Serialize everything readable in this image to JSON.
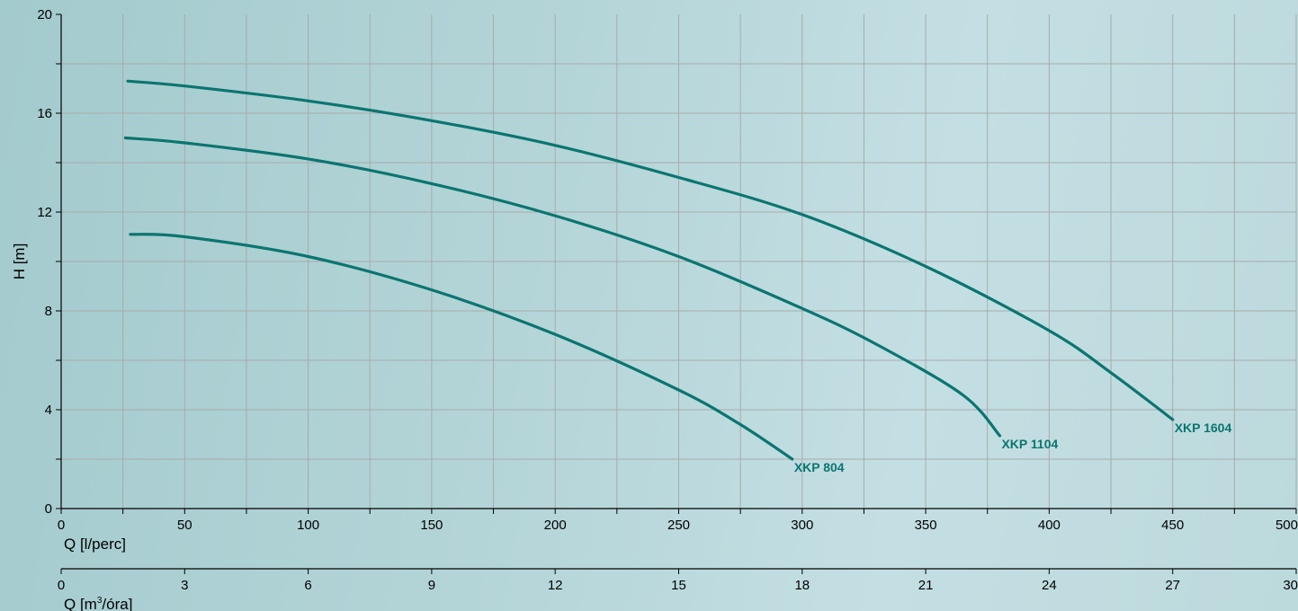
{
  "colors": {
    "curve": "#0b7570",
    "grid": "#a7abab",
    "axis": "#000000"
  },
  "chart_data": {
    "type": "line",
    "ylabel": "H [m]",
    "xlabel": "Q [l/perc]",
    "xlabel2_base": "Q [m",
    "xlabel2_sup": "3",
    "xlabel2_tail": "/óra]",
    "xlim": [
      0,
      500
    ],
    "ylim": [
      0,
      20
    ],
    "x_ticks": [
      0,
      50,
      100,
      150,
      200,
      250,
      300,
      350,
      400,
      450,
      500
    ],
    "y_ticks": [
      0,
      4,
      8,
      12,
      16,
      20
    ],
    "secondary_x_ticks": [
      0,
      3,
      6,
      9,
      12,
      15,
      18,
      21,
      24,
      27,
      30
    ],
    "secondary_xlim": [
      0,
      30
    ],
    "grid": true,
    "series": [
      {
        "name": "XKP 1604",
        "x": [
          27,
          50,
          100,
          150,
          200,
          250,
          300,
          350,
          400,
          425,
          450
        ],
        "y": [
          17.3,
          17.1,
          16.5,
          15.7,
          14.7,
          13.4,
          11.9,
          9.8,
          7.2,
          5.5,
          3.6
        ]
      },
      {
        "name": "XKP 1104",
        "x": [
          26,
          50,
          100,
          150,
          200,
          250,
          300,
          330,
          365,
          380
        ],
        "y": [
          15.0,
          14.8,
          14.15,
          13.15,
          11.85,
          10.2,
          8.1,
          6.65,
          4.6,
          2.95
        ]
      },
      {
        "name": "XKP 804",
        "x": [
          28,
          50,
          100,
          150,
          200,
          250,
          275,
          296
        ],
        "y": [
          11.1,
          11.0,
          10.2,
          8.85,
          7.05,
          4.8,
          3.4,
          2.0
        ]
      }
    ]
  }
}
